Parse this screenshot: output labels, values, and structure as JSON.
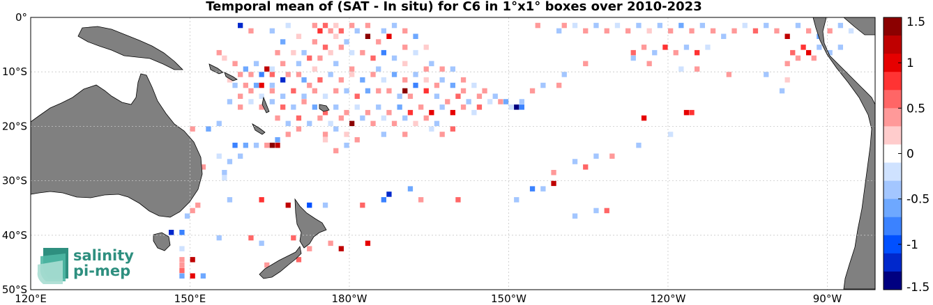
{
  "title": "Temporal mean of (SAT - In situ) for C6 in 1°x1° boxes over 2010-2023",
  "map": {
    "lon_range": [
      120,
      279
    ],
    "lat_range": [
      -50,
      0
    ],
    "x_ticks": [
      {
        "lon": 120,
        "label": "120°E"
      },
      {
        "lon": 150,
        "label": "150°E"
      },
      {
        "lon": 180,
        "label": "180°W"
      },
      {
        "lon": 210,
        "label": "150°W"
      },
      {
        "lon": 240,
        "label": "120°W"
      },
      {
        "lon": 270,
        "label": "90°W"
      }
    ],
    "y_ticks": [
      {
        "lat": 0,
        "label": "0°"
      },
      {
        "lat": -10,
        "label": "10°S"
      },
      {
        "lat": -20,
        "label": "20°S"
      },
      {
        "lat": -30,
        "label": "30°S"
      },
      {
        "lat": -40,
        "label": "40°S"
      },
      {
        "lat": -50,
        "label": "50°S"
      }
    ],
    "grid": true,
    "land_color": "#808080",
    "ocean_color": "#ffffff"
  },
  "colorbar": {
    "range": [
      -1.5,
      1.5
    ],
    "ticks": [
      "1.5",
      "1",
      "0.5",
      "0",
      "-0.5",
      "-1",
      "-1.5"
    ],
    "tick_values": [
      1.5,
      1,
      0.5,
      0,
      -0.5,
      -1,
      -1.5
    ],
    "colors": [
      "#8b0000",
      "#bf0000",
      "#e60000",
      "#ff3333",
      "#ff6666",
      "#ff9999",
      "#ffcccc",
      "#ffffff",
      "#cfe2ff",
      "#a3c6ff",
      "#6ea8ff",
      "#3b82ff",
      "#0050ff",
      "#0028cc",
      "#000080"
    ]
  },
  "logo": {
    "line1": "salinity",
    "line2": "pi-mep"
  },
  "cells": [
    [
      159,
      -1,
      -1.2
    ],
    [
      161,
      -2,
      0.4
    ],
    [
      165,
      -2,
      -0.3
    ],
    [
      168,
      -1,
      -0.2
    ],
    [
      173,
      -1,
      0.3
    ],
    [
      174,
      -2,
      0.8
    ],
    [
      175,
      -1,
      0.6
    ],
    [
      176,
      -2,
      0.4
    ],
    [
      177,
      -1,
      0.2
    ],
    [
      178,
      -2,
      0.6
    ],
    [
      180,
      -1,
      0.3
    ],
    [
      181,
      -2,
      -0.3
    ],
    [
      183,
      -1,
      0.5
    ],
    [
      186,
      -2,
      -0.4
    ],
    [
      188,
      -1,
      -0.3
    ],
    [
      190,
      -2,
      0.3
    ],
    [
      192,
      -3,
      -0.5
    ],
    [
      183,
      -3,
      1.3
    ],
    [
      187,
      -3,
      0.9
    ],
    [
      185,
      -4,
      0.5
    ],
    [
      179,
      -4,
      -0.4
    ],
    [
      177,
      -3,
      0.2
    ],
    [
      175,
      -5,
      0.7
    ],
    [
      173,
      -4,
      0.3
    ],
    [
      170,
      -3,
      0.2
    ],
    [
      167,
      -4,
      -0.6
    ],
    [
      166,
      -6,
      0.3
    ],
    [
      169,
      -6,
      0.2
    ],
    [
      171,
      -6,
      -0.3
    ],
    [
      172,
      -7,
      0.6
    ],
    [
      174,
      -7,
      0.4
    ],
    [
      176,
      -6,
      0.2
    ],
    [
      178,
      -5,
      0.5
    ],
    [
      180,
      -6,
      -0.2
    ],
    [
      182,
      -6,
      0.4
    ],
    [
      184,
      -7,
      0.6
    ],
    [
      186,
      -6,
      -0.8
    ],
    [
      188,
      -7,
      -0.4
    ],
    [
      190,
      -5,
      0.3
    ],
    [
      192,
      -6,
      -0.2
    ],
    [
      194,
      -5,
      0.2
    ],
    [
      155,
      -6,
      0.3
    ],
    [
      156,
      -7,
      0.2
    ],
    [
      158,
      -8,
      0.4
    ],
    [
      160,
      -9,
      -0.5
    ],
    [
      162,
      -8,
      -0.3
    ],
    [
      164,
      -9,
      1.2
    ],
    [
      165,
      -10,
      0.6
    ],
    [
      163,
      -10,
      -0.7
    ],
    [
      161,
      -10,
      0.4
    ],
    [
      159,
      -10,
      0.3
    ],
    [
      157,
      -11,
      0.2
    ],
    [
      158,
      -12,
      -0.3
    ],
    [
      160,
      -12,
      0.4
    ],
    [
      162,
      -12,
      -0.6
    ],
    [
      163,
      -12,
      0.9
    ],
    [
      165,
      -12,
      -0.4
    ],
    [
      167,
      -11,
      -1.3
    ],
    [
      168,
      -10,
      0.3
    ],
    [
      170,
      -10,
      0.5
    ],
    [
      171,
      -11,
      -0.5
    ],
    [
      172,
      -12,
      0.3
    ],
    [
      174,
      -11,
      0.6
    ],
    [
      176,
      -10,
      -0.4
    ],
    [
      178,
      -11,
      0.3
    ],
    [
      180,
      -10,
      0.2
    ],
    [
      182,
      -11,
      -0.6
    ],
    [
      184,
      -10,
      0.4
    ],
    [
      186,
      -11,
      -0.2
    ],
    [
      188,
      -10,
      -0.5
    ],
    [
      190,
      -11,
      0.3
    ],
    [
      192,
      -10,
      -0.3
    ],
    [
      194,
      -11,
      0.2
    ],
    [
      196,
      -12,
      0.5
    ],
    [
      197,
      -11,
      -0.4
    ],
    [
      199,
      -12,
      -0.6
    ],
    [
      201,
      -13,
      0.3
    ],
    [
      203,
      -12,
      -0.2
    ],
    [
      205,
      -13,
      0.4
    ],
    [
      207,
      -14,
      -0.3
    ],
    [
      209,
      -15,
      -0.5
    ],
    [
      211,
      -16,
      -1.4
    ],
    [
      212,
      -16,
      -0.8
    ],
    [
      210,
      -16,
      -0.2
    ],
    [
      206,
      -15,
      -0.2
    ],
    [
      204,
      -14,
      0.4
    ],
    [
      202,
      -15,
      -0.3
    ],
    [
      200,
      -14,
      0.6
    ],
    [
      198,
      -15,
      0.3
    ],
    [
      196,
      -14,
      -0.4
    ],
    [
      194,
      -13,
      0.8
    ],
    [
      192,
      -12,
      -0.9
    ],
    [
      190,
      -13,
      1.4
    ],
    [
      191,
      -14,
      0.4
    ],
    [
      189,
      -14,
      -0.3
    ],
    [
      187,
      -13,
      0.5
    ],
    [
      185,
      -13,
      0.3
    ],
    [
      183,
      -13,
      -0.5
    ],
    [
      181,
      -14,
      0.6
    ],
    [
      179,
      -13,
      -0.3
    ],
    [
      177,
      -13,
      0.5
    ],
    [
      175,
      -14,
      -0.2
    ],
    [
      173,
      -13,
      0.3
    ],
    [
      171,
      -14,
      -0.4
    ],
    [
      169,
      -13,
      0.6
    ],
    [
      167,
      -14,
      -0.3
    ],
    [
      165,
      -13,
      0.4
    ],
    [
      163,
      -14,
      -0.2
    ],
    [
      161,
      -13,
      0.3
    ],
    [
      159,
      -14,
      0.5
    ],
    [
      157,
      -15,
      -0.3
    ],
    [
      159,
      -16,
      0.3
    ],
    [
      161,
      -15,
      -0.2
    ],
    [
      163,
      -16,
      0.4
    ],
    [
      165,
      -15,
      -0.3
    ],
    [
      167,
      -16,
      0.7
    ],
    [
      169,
      -16,
      -0.4
    ],
    [
      171,
      -15,
      0.3
    ],
    [
      173,
      -16,
      -0.5
    ],
    [
      175,
      -17,
      0.6
    ],
    [
      177,
      -16,
      -0.3
    ],
    [
      179,
      -17,
      0.4
    ],
    [
      181,
      -16,
      -0.2
    ],
    [
      183,
      -17,
      0.5
    ],
    [
      185,
      -16,
      -0.4
    ],
    [
      187,
      -17,
      0.3
    ],
    [
      189,
      -16,
      -0.6
    ],
    [
      191,
      -17,
      0.8
    ],
    [
      193,
      -16,
      0.4
    ],
    [
      195,
      -17,
      0.9
    ],
    [
      197,
      -16,
      -0.3
    ],
    [
      199,
      -17,
      1.0
    ],
    [
      201,
      -16,
      0.3
    ],
    [
      203,
      -17,
      -0.2
    ],
    [
      204,
      -16,
      0.6
    ],
    [
      166,
      -18,
      0.4
    ],
    [
      168,
      -19,
      -0.3
    ],
    [
      170,
      -18,
      0.6
    ],
    [
      172,
      -19,
      -0.4
    ],
    [
      174,
      -18,
      0.3
    ],
    [
      176,
      -19,
      -0.2
    ],
    [
      178,
      -18,
      0.5
    ],
    [
      180,
      -19,
      1.4
    ],
    [
      182,
      -18,
      -0.3
    ],
    [
      184,
      -19,
      0.4
    ],
    [
      186,
      -18,
      -0.2
    ],
    [
      188,
      -19,
      0.3
    ],
    [
      190,
      -18,
      -0.4
    ],
    [
      192,
      -19,
      0.2
    ],
    [
      194,
      -18,
      0.3
    ],
    [
      196,
      -19,
      -0.3
    ],
    [
      150,
      -20,
      0.3
    ],
    [
      153,
      -20,
      -0.5
    ],
    [
      155,
      -19,
      -0.3
    ],
    [
      168,
      -21,
      0.5
    ],
    [
      170,
      -20,
      0.3
    ],
    [
      175,
      -21,
      0.4
    ],
    [
      177,
      -20,
      -0.3
    ],
    [
      179,
      -21,
      0.2
    ],
    [
      181,
      -22,
      0.3
    ],
    [
      186,
      -21,
      -0.4
    ],
    [
      190,
      -21,
      0.3
    ],
    [
      195,
      -20,
      -0.2
    ],
    [
      197,
      -21,
      0.3
    ],
    [
      199,
      -20,
      0.6
    ],
    [
      166,
      -22,
      -0.6
    ],
    [
      164,
      -23,
      0.3
    ],
    [
      162,
      -23,
      -0.4
    ],
    [
      160,
      -23,
      -0.6
    ],
    [
      158,
      -23,
      -0.8
    ],
    [
      165,
      -23,
      1.3
    ],
    [
      166,
      -23,
      1.2
    ],
    [
      159,
      -25,
      -0.3
    ],
    [
      157,
      -26,
      -0.4
    ],
    [
      155,
      -25,
      -0.2
    ],
    [
      156,
      -28,
      -0.3
    ],
    [
      156,
      -29,
      -0.2
    ],
    [
      152,
      -27,
      0.3
    ],
    [
      179,
      -23,
      -0.3
    ],
    [
      177,
      -24,
      0.3
    ],
    [
      175,
      -22,
      0.2
    ],
    [
      235,
      -18,
      0.9
    ],
    [
      243,
      -17,
      0.9
    ],
    [
      244,
      -17,
      0.8
    ],
    [
      222,
      -26,
      -0.3
    ],
    [
      224,
      -27,
      0.6
    ],
    [
      226,
      -25,
      -0.3
    ],
    [
      229,
      -25,
      0.4
    ],
    [
      234,
      -23,
      -0.3
    ],
    [
      240,
      -21,
      -0.2
    ],
    [
      218,
      -28,
      0.5
    ],
    [
      218,
      -30,
      1.1
    ],
    [
      216,
      -31,
      -0.4
    ],
    [
      214,
      -31,
      -0.7
    ],
    [
      211,
      -33,
      -0.3
    ],
    [
      200,
      -33,
      0.6
    ],
    [
      191,
      -31,
      -0.6
    ],
    [
      193,
      -33,
      0.4
    ],
    [
      187,
      -32,
      -1.3
    ],
    [
      186,
      -33,
      -0.8
    ],
    [
      182,
      -34,
      0.6
    ],
    [
      175,
      -34,
      -0.3
    ],
    [
      172,
      -34,
      -1.0
    ],
    [
      168,
      -34,
      1.2
    ],
    [
      163,
      -33,
      0.8
    ],
    [
      157,
      -33,
      -0.4
    ],
    [
      150,
      -35,
      0.3
    ],
    [
      151,
      -34,
      0.5
    ],
    [
      149,
      -36,
      -0.3
    ],
    [
      146,
      -39,
      -1.3
    ],
    [
      148,
      -39,
      -0.8
    ],
    [
      155,
      -40,
      -0.3
    ],
    [
      161,
      -40,
      0.6
    ],
    [
      169,
      -40,
      0.7
    ],
    [
      183,
      -41,
      0.9
    ],
    [
      178,
      -42,
      1.1
    ],
    [
      172,
      -42,
      0.4
    ],
    [
      176,
      -41,
      0.5
    ],
    [
      170,
      -44,
      0.6
    ],
    [
      164,
      -45,
      0.3
    ],
    [
      163,
      -41,
      -0.3
    ],
    [
      148,
      -42,
      -0.2
    ],
    [
      148,
      -44,
      0.3
    ],
    [
      148,
      -45,
      0.4
    ],
    [
      148,
      -46,
      0.6
    ],
    [
      150,
      -47,
      1.0
    ],
    [
      148,
      -47,
      -0.6
    ],
    [
      152,
      -47,
      -0.5
    ],
    [
      150,
      -44,
      1.1
    ],
    [
      222,
      -36,
      -0.3
    ],
    [
      228,
      -35,
      0.6
    ],
    [
      226,
      -35,
      -0.3
    ],
    [
      215,
      -1,
      0.3
    ],
    [
      219,
      -2,
      -0.3
    ],
    [
      220,
      -1,
      0.4
    ],
    [
      222,
      -1,
      -0.2
    ],
    [
      224,
      -2,
      0.5
    ],
    [
      226,
      -1,
      -0.4
    ],
    [
      228,
      -2,
      0.3
    ],
    [
      230,
      -1,
      -0.2
    ],
    [
      232,
      -2,
      0.4
    ],
    [
      234,
      -1,
      -0.3
    ],
    [
      236,
      -2,
      0.2
    ],
    [
      238,
      -1,
      -0.3
    ],
    [
      240,
      -2,
      0.3
    ],
    [
      242,
      -1,
      -0.6
    ],
    [
      244,
      -2,
      0.4
    ],
    [
      246,
      -1,
      -0.3
    ],
    [
      248,
      -2,
      0.5
    ],
    [
      250,
      -3,
      -0.4
    ],
    [
      252,
      -2,
      0.3
    ],
    [
      254,
      -1,
      -0.2
    ],
    [
      256,
      -2,
      0.6
    ],
    [
      258,
      -1,
      -0.3
    ],
    [
      260,
      -2,
      0.4
    ],
    [
      262,
      -3,
      1.1
    ],
    [
      264,
      -1,
      -0.4
    ],
    [
      266,
      -2,
      0.3
    ],
    [
      268,
      -3,
      -0.5
    ],
    [
      270,
      -2,
      0.4
    ],
    [
      272,
      -1,
      -0.3
    ],
    [
      274,
      -2,
      -0.2
    ],
    [
      276,
      -1,
      0.3
    ],
    [
      233,
      -6,
      0.6
    ],
    [
      235,
      -5,
      0.3
    ],
    [
      237,
      -6,
      -0.3
    ],
    [
      239,
      -5,
      0.8
    ],
    [
      241,
      -6,
      0.3
    ],
    [
      243,
      -5,
      -0.3
    ],
    [
      245,
      -6,
      0.8
    ],
    [
      247,
      -5,
      -0.2
    ],
    [
      263,
      -6,
      0.7
    ],
    [
      265,
      -5,
      0.8
    ],
    [
      266,
      -6,
      0.9
    ],
    [
      268,
      -5,
      -0.3
    ],
    [
      270,
      -6,
      -0.4
    ],
    [
      272,
      -5,
      -0.3
    ],
    [
      267,
      -7,
      0.3
    ],
    [
      264,
      -7,
      0.5
    ],
    [
      262,
      -8,
      0.4
    ],
    [
      258,
      -10,
      -0.3
    ],
    [
      251,
      -10,
      0.3
    ],
    [
      245,
      -9,
      0.4
    ],
    [
      242,
      -9,
      -0.2
    ],
    [
      236,
      -8,
      0.4
    ],
    [
      233,
      -7,
      -0.3
    ],
    [
      224,
      -8,
      0.5
    ],
    [
      220,
      -10,
      -0.4
    ],
    [
      219,
      -12,
      0.4
    ],
    [
      216,
      -12,
      -0.3
    ],
    [
      214,
      -13,
      0.4
    ],
    [
      212,
      -15,
      -0.3
    ],
    [
      208,
      -15,
      0.3
    ],
    [
      201,
      -11,
      0.3
    ],
    [
      199,
      -9,
      -0.4
    ],
    [
      197,
      -9,
      0.3
    ],
    [
      195,
      -8,
      -0.3
    ],
    [
      194,
      -9,
      0.3
    ],
    [
      190,
      -8,
      0.2
    ],
    [
      185,
      -9,
      -0.3
    ],
    [
      180,
      -9,
      0.3
    ],
    [
      177,
      -8,
      -0.4
    ],
    [
      173,
      -9,
      0.2
    ],
    [
      170,
      -8,
      -0.3
    ],
    [
      167,
      -8,
      0.4
    ],
    [
      165,
      -9,
      -0.2
    ],
    [
      262,
      -11,
      0.2
    ],
    [
      261,
      -13,
      -0.3
    ]
  ]
}
